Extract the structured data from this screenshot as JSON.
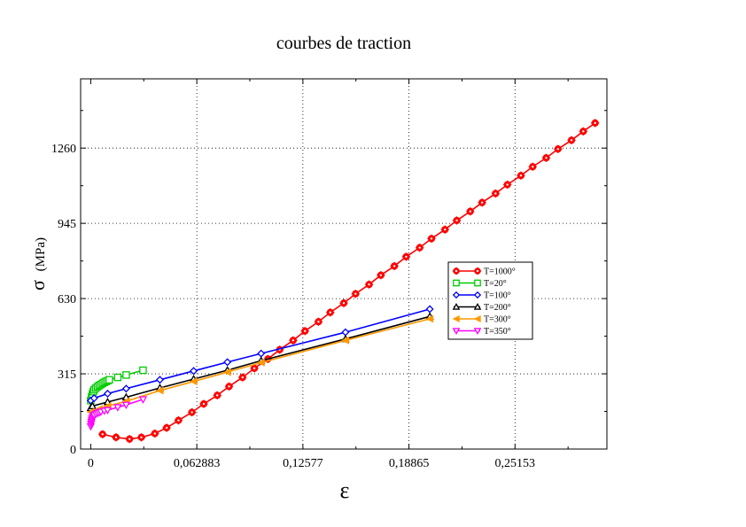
{
  "chart_data": {
    "type": "line",
    "title": "courbes de traction",
    "xlabel": "ε",
    "ylabel_symbol": "σ",
    "ylabel_unit": "(MPa)",
    "xlim": [
      -0.006,
      0.306
    ],
    "ylim": [
      0,
      1550
    ],
    "x_ticks": [
      {
        "value": 0,
        "label": "0"
      },
      {
        "value": 0.062883,
        "label": "0,062883"
      },
      {
        "value": 0.12577,
        "label": "0,12577"
      },
      {
        "value": 0.18865,
        "label": "0,18865"
      },
      {
        "value": 0.25153,
        "label": "0,25153"
      }
    ],
    "y_ticks": [
      {
        "value": 0,
        "label": "0"
      },
      {
        "value": 315,
        "label": "315"
      },
      {
        "value": 630,
        "label": "630"
      },
      {
        "value": 945,
        "label": "945"
      },
      {
        "value": 1260,
        "label": "1260"
      }
    ],
    "grid": true,
    "legend_position": "right",
    "series": [
      {
        "name": "T=1000°",
        "color": "#ff0000",
        "marker": "star",
        "x": [
          0.007,
          0.015,
          0.023,
          0.03,
          0.038,
          0.045,
          0.052,
          0.06,
          0.067,
          0.075,
          0.082,
          0.09,
          0.097,
          0.105,
          0.112,
          0.12,
          0.127,
          0.135,
          0.142,
          0.15,
          0.157,
          0.165,
          0.172,
          0.18,
          0.187,
          0.195,
          0.202,
          0.21,
          0.217,
          0.225,
          0.232,
          0.24,
          0.247,
          0.255,
          0.262,
          0.27,
          0.277,
          0.285,
          0.292,
          0.299
        ],
        "y": [
          62,
          49,
          42,
          49,
          65,
          89,
          120,
          154,
          189,
          225,
          262,
          300,
          338,
          377,
          416,
          455,
          494,
          533,
          572,
          611,
          650,
          689,
          728,
          766,
          805,
          843,
          881,
          919,
          957,
          995,
          1032,
          1070,
          1107,
          1145,
          1182,
          1219,
          1256,
          1293,
          1330,
          1365
        ]
      },
      {
        "name": "T=20°",
        "color": "#00cc00",
        "marker": "square-open",
        "x": [
          0.0,
          0.0005,
          0.001,
          0.0015,
          0.002,
          0.003,
          0.004,
          0.005,
          0.006,
          0.007,
          0.008,
          0.009,
          0.01,
          0.011,
          0.016,
          0.021,
          0.031
        ],
        "y": [
          203,
          218,
          230,
          240,
          248,
          255,
          261,
          266,
          270,
          275,
          279,
          283,
          286,
          290,
          300,
          310,
          330
        ]
      },
      {
        "name": "T=100°",
        "color": "#0000ff",
        "marker": "diamond-open",
        "x": [
          0.0,
          0.002,
          0.01,
          0.021,
          0.041,
          0.061,
          0.081,
          0.101,
          0.151,
          0.201
        ],
        "y": [
          203,
          213,
          232,
          253,
          290,
          327,
          364,
          400,
          489,
          586
        ]
      },
      {
        "name": "T=200°",
        "color": "#000000",
        "marker": "triangle-up-open",
        "x": [
          0.0,
          0.001,
          0.01,
          0.021,
          0.041,
          0.061,
          0.081,
          0.101,
          0.151,
          0.201
        ],
        "y": [
          172,
          180,
          197,
          217,
          256,
          293,
          330,
          370,
          461,
          555
        ]
      },
      {
        "name": "T=300°",
        "color": "#ff9900",
        "marker": "triangle-left",
        "x": [
          0.0,
          0.002,
          0.005,
          0.01,
          0.021,
          0.041,
          0.061,
          0.081,
          0.101,
          0.151,
          0.201
        ],
        "y": [
          155,
          158,
          168,
          180,
          200,
          245,
          283,
          322,
          362,
          455,
          545
        ]
      },
      {
        "name": "T=350°",
        "color": "#ff00ff",
        "marker": "triangle-down-open",
        "x": [
          0.0,
          0.0002,
          0.0004,
          0.0006,
          0.0008,
          0.0012,
          0.0016,
          0.002,
          0.003,
          0.004,
          0.005,
          0.006,
          0.008,
          0.01,
          0.016,
          0.021,
          0.031
        ],
        "y": [
          95,
          105,
          113,
          120,
          127,
          133,
          138,
          142,
          147,
          150,
          153,
          156,
          160,
          163,
          175,
          185,
          208
        ]
      }
    ]
  }
}
